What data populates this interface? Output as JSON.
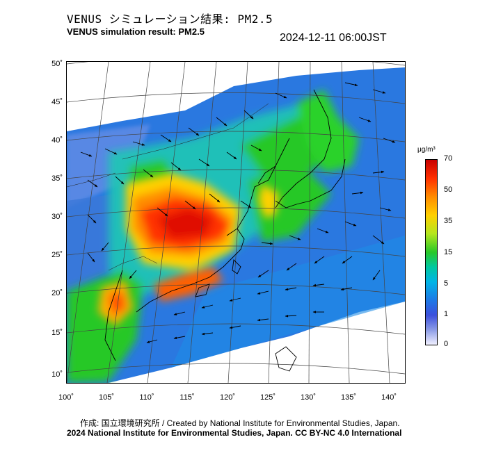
{
  "header": {
    "title_jp": "VENUS シミュレーション結果: PM2.5",
    "title_en": "VENUS simulation result: PM2.5",
    "timestamp": "2024-12-11 06:00JST"
  },
  "map": {
    "lat_ticks": [
      "50˚",
      "45˚",
      "40˚",
      "35˚",
      "30˚",
      "25˚",
      "20˚",
      "15˚",
      "10˚"
    ],
    "lon_ticks": [
      "100˚",
      "105˚",
      "110˚",
      "115˚",
      "120˚",
      "125˚",
      "130˚",
      "135˚",
      "140˚"
    ]
  },
  "colorbar": {
    "unit": "μg/m³",
    "ticks": [
      "70",
      "50",
      "35",
      "15",
      "5",
      "1",
      "0"
    ],
    "colors": [
      "#c80000",
      "#ff8c00",
      "#ffd000",
      "#28c828",
      "#00b4e6",
      "#3c50dc",
      "#f0f0ff"
    ]
  },
  "credits": {
    "line1": "作成: 国立環境研究所 / Created by National Institute for Environmental Studies, Japan.",
    "line2": "2024 National Institute for Environmental Studies, Japan. CC BY-NC 4.0 International"
  }
}
